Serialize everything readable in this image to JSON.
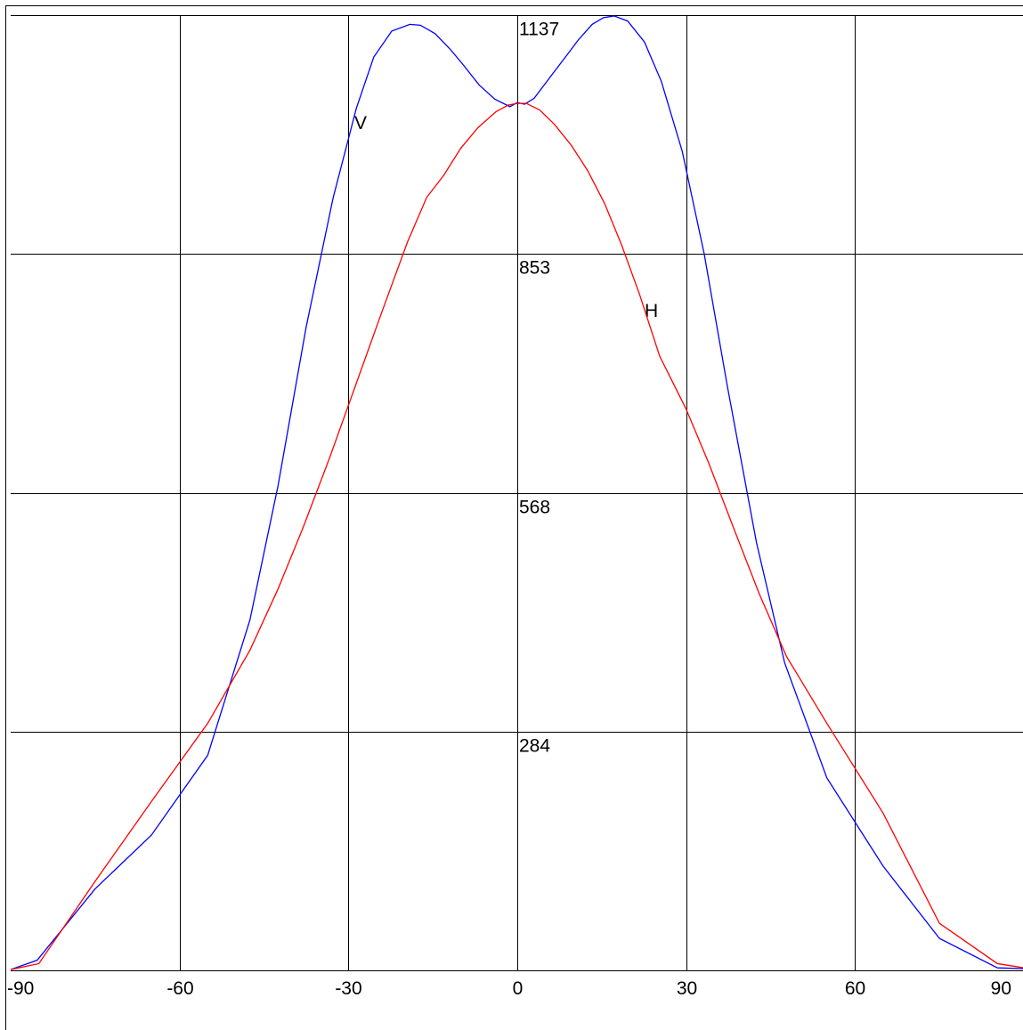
{
  "chart_data": {
    "type": "line",
    "xlim": [
      -90,
      90
    ],
    "xticks": [
      -90,
      -60,
      -30,
      0,
      30,
      60,
      90
    ],
    "ylim": [
      0,
      1137
    ],
    "yticks": [
      284,
      568,
      853,
      1137
    ],
    "grid": true,
    "series": [
      {
        "name": "V",
        "color": "#0000ff",
        "x": [
          -90,
          -85.3,
          -75,
          -65,
          -55,
          -47.5,
          -42.5,
          -37.5,
          -32.7,
          -28.6,
          -25.5,
          -22.3,
          -19.1,
          -17.2,
          -14.6,
          -12,
          -9.5,
          -6.8,
          -4,
          -1.3,
          0,
          1.3,
          3,
          5.7,
          8.2,
          10.9,
          13.3,
          15.3,
          17.2,
          19.6,
          22.6,
          25.6,
          29.3,
          33.2,
          37.3,
          42.5,
          47.5,
          55,
          65,
          75,
          85.3,
          90
        ],
        "values": [
          1,
          12,
          97,
          161,
          256,
          417,
          577,
          766,
          920,
          1026,
          1087,
          1118,
          1126,
          1125,
          1115,
          1097,
          1077,
          1054,
          1037,
          1028,
          1033,
          1031,
          1038,
          1062,
          1084,
          1108,
          1126,
          1134,
          1136,
          1130,
          1105,
          1058,
          975,
          853,
          696,
          509,
          366,
          229,
          124,
          38,
          3,
          2
        ]
      },
      {
        "name": "H",
        "color": "#ff0000",
        "x": [
          -90,
          -85,
          -75,
          -65,
          -55,
          -47.5,
          -42.5,
          -38,
          -33.4,
          -28.8,
          -24.2,
          -19.5,
          -16.1,
          -13.1,
          -10.1,
          -7,
          -3.8,
          -1.6,
          0,
          1.6,
          4,
          6.6,
          9.6,
          12.5,
          15.5,
          18.5,
          21.7,
          25.3,
          30,
          34,
          38.4,
          43,
          47.8,
          55,
          65,
          75,
          85.3,
          90
        ],
        "values": [
          1,
          8,
          106,
          201,
          294,
          381,
          454,
          528,
          609,
          695,
          781,
          867,
          920,
          946,
          978,
          1003,
          1022,
          1030,
          1032,
          1032,
          1024,
          1007,
          982,
          952,
          913,
          864,
          805,
          731,
          668,
          604,
          527,
          448,
          374,
          294,
          187,
          56,
          8,
          3
        ]
      }
    ]
  }
}
